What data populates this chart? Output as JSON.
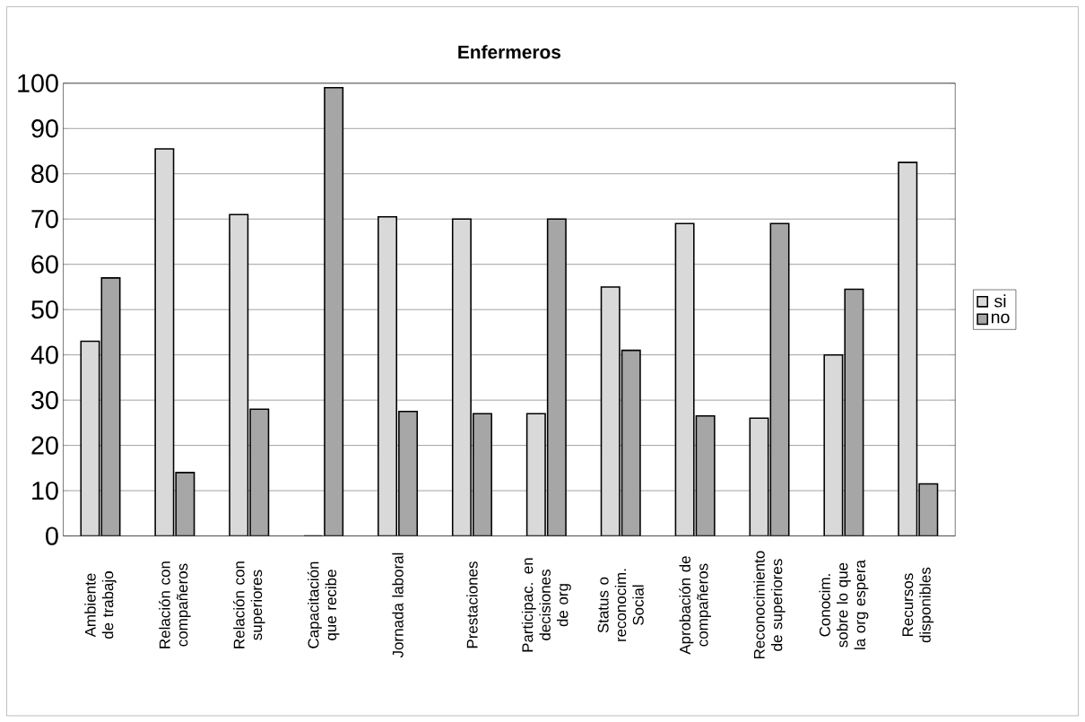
{
  "chart_data": {
    "type": "bar",
    "title": "Enfermeros",
    "categories": [
      "Ambiente de trabajo",
      "Relación con compañeros",
      "Relación con superiores",
      "Capacitación que recibe",
      "Jornada laboral",
      "Prestaciones",
      "Participac. en decisiones de org",
      "Status o reconocim. Social",
      "Aprobación de compañeros",
      "Reconocimiento de superiores",
      "Conocim. sobre lo que la org espera",
      "Recursos disponibles"
    ],
    "series": [
      {
        "name": "si",
        "color": "#d9d9d9",
        "values": [
          43,
          85.5,
          71,
          0,
          70.5,
          70,
          27,
          55,
          69,
          26,
          40,
          82.5
        ]
      },
      {
        "name": "no",
        "color": "#a6a6a6",
        "values": [
          57,
          14,
          28,
          99,
          27.5,
          27,
          70,
          41,
          26.5,
          69,
          54.5,
          11.5
        ]
      }
    ],
    "ylim": [
      0,
      100
    ],
    "yticks": [
      0,
      10,
      20,
      30,
      40,
      50,
      60,
      70,
      80,
      90,
      100
    ],
    "grid": "y",
    "legend": "right"
  }
}
